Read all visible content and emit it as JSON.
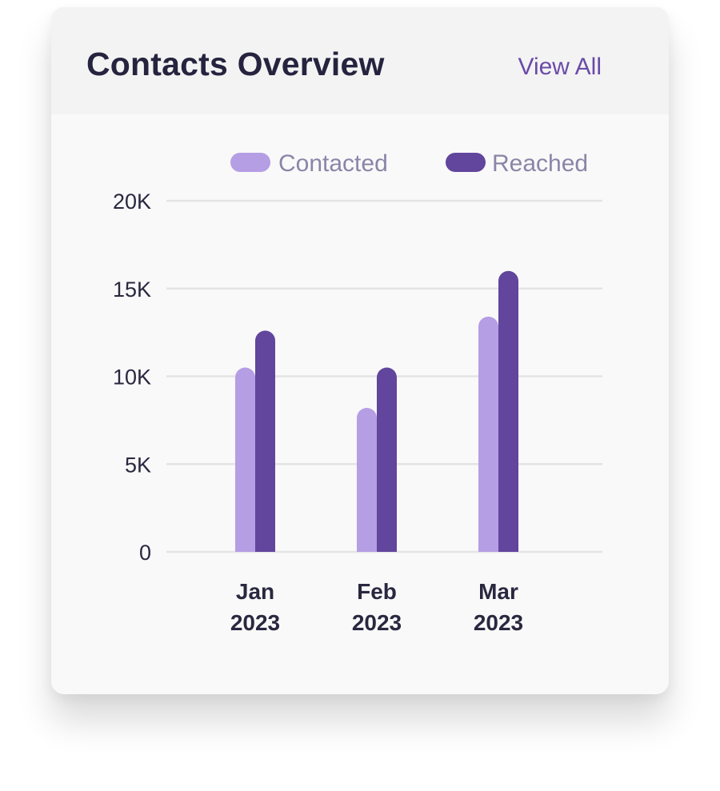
{
  "header": {
    "title": "Contacts Overview",
    "view_all_label": "View All"
  },
  "colors": {
    "contacted": "#b59ee4",
    "reached": "#62459d",
    "title": "#26233f",
    "link": "#6a4ba8",
    "grid": "#e4e4e4"
  },
  "chart_data": {
    "type": "bar",
    "title": "",
    "xlabel": "",
    "ylabel": "",
    "categories": [
      [
        "Jan",
        "2023"
      ],
      [
        "Feb",
        "2023"
      ],
      [
        "Mar",
        "2023"
      ]
    ],
    "series": [
      {
        "name": "Contacted",
        "values": [
          10500,
          8200,
          13400
        ]
      },
      {
        "name": "Reached",
        "values": [
          12600,
          10500,
          16000
        ]
      }
    ],
    "ylim": [
      0,
      20000
    ],
    "yticks": [
      0,
      5000,
      10000,
      15000,
      20000
    ],
    "ytick_labels": [
      "0",
      "5K",
      "10K",
      "15K",
      "20K"
    ],
    "grid": true,
    "legend_position": "top-right"
  }
}
